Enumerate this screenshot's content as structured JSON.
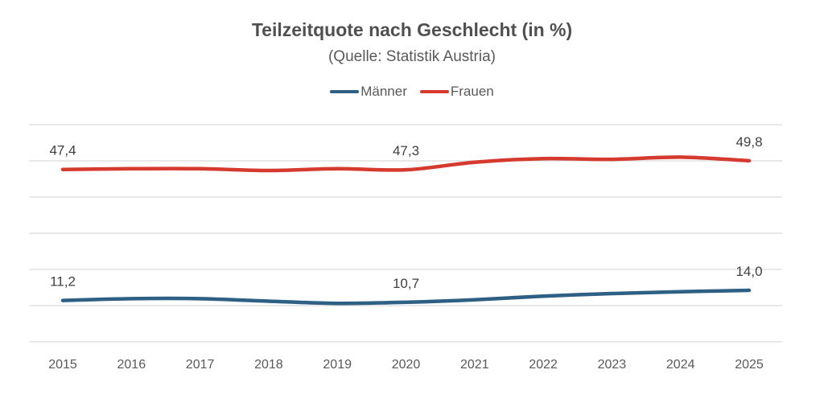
{
  "chart_data": {
    "type": "line",
    "title": "Teilzeitquote nach Geschlecht (in %)",
    "subtitle": "(Quelle: Statistik Austria)",
    "xlabel": "",
    "ylabel": "",
    "x": [
      "2015",
      "2016",
      "2017",
      "2018",
      "2019",
      "2020",
      "2021",
      "2022",
      "2023",
      "2024",
      "2025"
    ],
    "ylim": [
      0,
      60
    ],
    "ystep": 10,
    "grid": true,
    "y_tick_labels_visible": false,
    "legend": "top-center",
    "series": [
      {
        "name": "Männer",
        "color": "#2e5f85",
        "values": [
          11.2,
          11.7,
          11.7,
          11.0,
          10.4,
          10.7,
          11.4,
          12.4,
          13.1,
          13.6,
          14.0
        ],
        "data_labels": [
          {
            "index": 0,
            "text": "11,2"
          },
          {
            "index": 5,
            "text": "10,7"
          },
          {
            "index": 10,
            "text": "14,0"
          }
        ]
      },
      {
        "name": "Frauen",
        "color": "#d63a2f",
        "values": [
          47.4,
          47.6,
          47.6,
          47.1,
          47.6,
          47.3,
          49.4,
          50.4,
          50.2,
          50.8,
          49.8
        ],
        "data_labels": [
          {
            "index": 0,
            "text": "47,4"
          },
          {
            "index": 5,
            "text": "47,3"
          },
          {
            "index": 10,
            "text": "49,8"
          }
        ]
      }
    ]
  }
}
